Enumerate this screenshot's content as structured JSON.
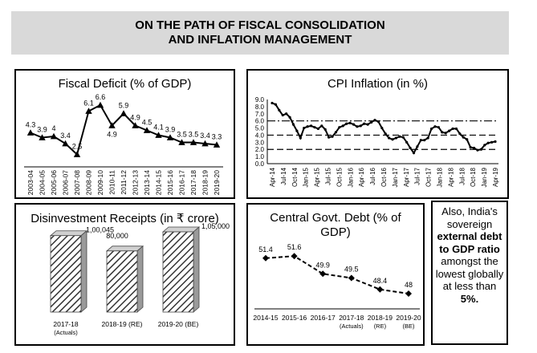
{
  "banner": {
    "line1": "ON THE PATH OF FISCAL CONSOLIDATION",
    "line2": "AND INFLATION MANAGEMENT"
  },
  "note": {
    "part1": "Also, India's sovereign",
    "part2": "external debt to GDP ratio",
    "part3": "amongst the lowest globally at less than",
    "part4": "5%."
  },
  "chart_data": [
    {
      "type": "line",
      "title": "Fiscal Deficit (% of GDP)",
      "categories": [
        "2003-04",
        "2004-05",
        "2005-06",
        "2006-07",
        "2007-08",
        "2008-09",
        "2009-10",
        "2010-11",
        "2011-12",
        "2012-13",
        "2013-14",
        "2014-15",
        "2015-16",
        "2016-17",
        "2017-18",
        "2018-19",
        "2019-20"
      ],
      "values": [
        4.3,
        3.9,
        4,
        3.4,
        2.5,
        6.1,
        6.6,
        4.9,
        5.9,
        4.9,
        4.5,
        4.1,
        3.9,
        3.5,
        3.5,
        3.4,
        3.3
      ],
      "data_labels": [
        "4.3",
        "3.9",
        "4",
        "3.4",
        "2.5",
        "6.1",
        "6.6",
        "4.9",
        "5.9",
        "4.9",
        "4.5",
        "4.1",
        "3.9",
        "3.5",
        "3.5",
        "3.4",
        "3.3"
      ],
      "marker": "triangle",
      "ylim": [
        2,
        7.2
      ]
    },
    {
      "type": "line",
      "title": "CPI Inflation (in %)",
      "yticks": [
        "0.0",
        "1.0",
        "2.0",
        "3.0",
        "4.0",
        "5.0",
        "6.0",
        "7.0",
        "8.0",
        "9.0"
      ],
      "ylim": [
        0,
        9
      ],
      "xticks": [
        "Apr-14",
        "Jul-14",
        "Oct-14",
        "Jan-15",
        "Apr-15",
        "Jul-15",
        "Oct-15",
        "Jan-16",
        "Apr-16",
        "Jul-16",
        "Oct-16",
        "Jan-17",
        "Apr-17",
        "Jul-17",
        "Oct-17",
        "Jan-18",
        "Apr-18",
        "Jul-18",
        "Oct-18",
        "Jan-19",
        "Apr-19"
      ],
      "values": [
        8.5,
        8.3,
        7.5,
        6.8,
        7.0,
        6.5,
        5.5,
        4.6,
        3.6,
        5.0,
        5.2,
        5.3,
        5.1,
        4.9,
        5.3,
        4.8,
        3.7,
        3.8,
        4.4,
        5.1,
        5.3,
        5.6,
        5.7,
        5.5,
        5.2,
        5.3,
        5.6,
        5.5,
        5.8,
        6.1,
        5.9,
        5.0,
        4.2,
        3.6,
        3.4,
        3.6,
        3.8,
        3.7,
        3.0,
        2.2,
        1.5,
        2.4,
        3.3,
        3.3,
        3.6,
        4.9,
        5.2,
        5.1,
        4.4,
        4.3,
        4.6,
        4.9,
        4.9,
        4.2,
        3.7,
        3.4,
        2.3,
        2.2,
        1.9,
        2.0,
        2.6,
        2.9,
        3.0,
        3.1
      ],
      "reference_lines": [
        6.0,
        4.0,
        2.0
      ]
    },
    {
      "type": "bar",
      "title": "Disinvestment Receipts (in ₹ crore)",
      "categories": [
        "2017-18\n(Actuals)",
        "2018-19 (RE)",
        "2019-20 (BE)"
      ],
      "values": [
        100045,
        80000,
        105000
      ],
      "data_labels": [
        "1,00,045",
        "80,000",
        "1,05,000"
      ],
      "style": "3d-hatched"
    },
    {
      "type": "line",
      "title": "Central Govt. Debt (% of GDP)",
      "categories": [
        "2014-15",
        "2015-16",
        "2016-17",
        "2017-18 (Actuals)",
        "2018-19 (RE)",
        "2019-20 (BE)"
      ],
      "values": [
        51.4,
        51.6,
        49.9,
        49.5,
        48.4,
        48
      ],
      "data_labels": [
        "51.4",
        "51.6",
        "49.9",
        "49.5",
        "48.4",
        "48"
      ],
      "ylim": [
        47,
        53
      ]
    }
  ]
}
